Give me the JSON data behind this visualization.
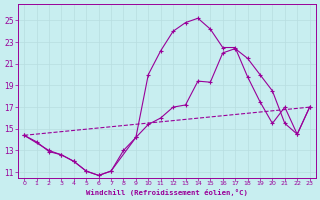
{
  "xlabel": "Windchill (Refroidissement éolien,°C)",
  "background_color": "#c8eef0",
  "line_color": "#990099",
  "grid_color": "#b8dde0",
  "xlim": [
    -0.5,
    23.5
  ],
  "ylim": [
    10.5,
    26.5
  ],
  "xticks": [
    0,
    1,
    2,
    3,
    4,
    5,
    6,
    7,
    8,
    9,
    10,
    11,
    12,
    13,
    14,
    15,
    16,
    17,
    18,
    19,
    20,
    21,
    22,
    23
  ],
  "yticks": [
    11,
    13,
    15,
    17,
    19,
    21,
    23,
    25
  ],
  "series1_x": [
    0,
    1,
    2,
    3,
    4,
    5,
    6,
    7,
    8,
    9,
    10,
    11,
    12,
    13,
    14,
    15,
    16,
    17,
    18,
    19,
    20,
    21,
    22,
    23
  ],
  "series1_y": [
    14.4,
    13.8,
    12.9,
    12.6,
    12.0,
    11.1,
    10.7,
    11.1,
    13.0,
    14.2,
    15.4,
    16.0,
    17.0,
    17.2,
    19.4,
    19.3,
    22.0,
    22.4,
    21.5,
    20.0,
    18.5,
    15.5,
    14.5,
    17.0
  ],
  "series2_x": [
    0,
    2,
    3,
    4,
    5,
    6,
    7,
    9,
    10,
    11,
    12,
    13,
    14,
    15,
    16,
    17,
    18,
    19,
    20,
    21,
    22,
    23
  ],
  "series2_y": [
    14.4,
    13.0,
    12.6,
    12.0,
    11.1,
    10.7,
    11.1,
    14.2,
    20.0,
    22.2,
    24.0,
    24.8,
    25.2,
    24.2,
    22.5,
    22.5,
    19.8,
    17.5,
    15.5,
    17.0,
    14.5,
    17.0
  ],
  "series3_x": [
    0,
    23
  ],
  "series3_y": [
    14.4,
    17.0
  ]
}
